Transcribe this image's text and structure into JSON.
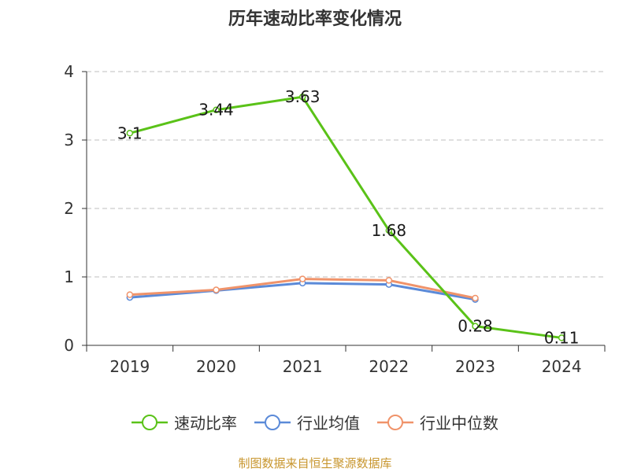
{
  "chart_data": {
    "type": "line",
    "title": "历年速动比率变化情况",
    "categories": [
      "2019",
      "2020",
      "2021",
      "2022",
      "2023",
      "2024"
    ],
    "ylim": [
      0,
      4
    ],
    "yticks": [
      0,
      1,
      2,
      3,
      4
    ],
    "grid": true,
    "legend_position": "bottom",
    "series": [
      {
        "name": "速动比率",
        "color": "#5ac218",
        "values": [
          3.1,
          3.44,
          3.63,
          1.68,
          0.28,
          0.11
        ],
        "labels": [
          "3.1",
          "3.44",
          "3.63",
          "1.68",
          "0.28",
          "0.11"
        ]
      },
      {
        "name": "行业均值",
        "color": "#5b8ad8",
        "values": [
          0.7,
          0.8,
          0.91,
          0.89,
          0.67,
          null
        ]
      },
      {
        "name": "行业中位数",
        "color": "#f0936a",
        "values": [
          0.74,
          0.81,
          0.97,
          0.95,
          0.69,
          null
        ]
      }
    ]
  },
  "source_text": "制图数据来自恒生聚源数据库"
}
